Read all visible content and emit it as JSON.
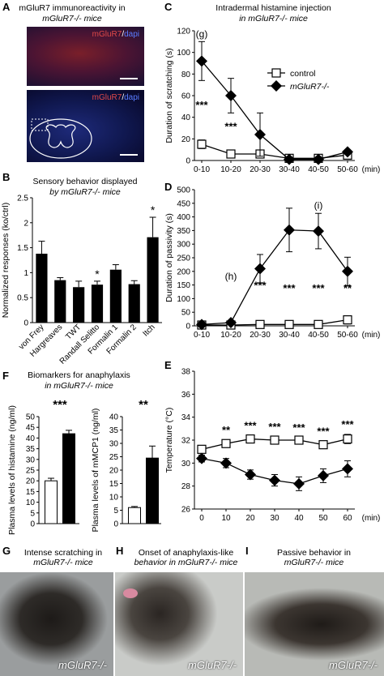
{
  "panels": {
    "A": {
      "letter": "A",
      "title_line1": "mGluR7 immunoreactivity in",
      "title_line2": "mGluR7-/- mice",
      "image_label_top": {
        "marker": "mGluR7",
        "sep": "/",
        "stain": "dapi"
      },
      "image_label_bottom": {
        "marker": "mGluR7",
        "sep": "/",
        "stain": "dapi"
      }
    },
    "B": {
      "letter": "B",
      "title_line1": "Sensory behavior displayed",
      "title_line2": "by mGluR7-/- mice"
    },
    "C": {
      "letter": "C",
      "title_line1": "Intradermal histamine injection",
      "title_line2": "in mGluR7-/- mice"
    },
    "D": {
      "letter": "D"
    },
    "E": {
      "letter": "E"
    },
    "F": {
      "letter": "F",
      "title_line1": "Biomarkers for anaphylaxis",
      "title_line2": "in mGluR7-/- mice"
    },
    "G": {
      "letter": "G",
      "caption_line1": "Intense scratching in",
      "caption_line2": "mGluR7-/- mice",
      "genotype": "mGluR7-/-"
    },
    "H": {
      "letter": "H",
      "caption_line1": "Onset of anaphylaxis-like",
      "caption_line2": "behavior in mGluR7-/- mice",
      "genotype": "mGluR7-/-"
    },
    "I": {
      "letter": "I",
      "caption_line1": "Passive behavior in",
      "caption_line2": "mGluR7-/- mice",
      "genotype": "mGluR7-/-"
    }
  },
  "colors": {
    "red_stain": "#d23a3a",
    "blue_stain": "#4b6cff",
    "bar": "#000000"
  },
  "chart_data": [
    {
      "id": "B",
      "type": "bar",
      "ylabel": "Normalized responses (ko/ctrl)",
      "ylim": [
        0,
        2.5
      ],
      "yticks": [
        0,
        0.5,
        1,
        1.5,
        2,
        2.5
      ],
      "ytick_labels": [
        "0",
        "0.5",
        "1",
        "1.5",
        "2",
        "2.5"
      ],
      "categories": [
        "von Frey",
        "Hargreaves",
        "TWT",
        "Randall Selitto",
        "Formalin 1",
        "Formalin 2",
        "Itch"
      ],
      "values": [
        1.38,
        0.85,
        0.71,
        0.76,
        1.06,
        0.77,
        1.71
      ],
      "errors": [
        0.25,
        0.05,
        0.12,
        0.07,
        0.1,
        0.07,
        0.4
      ],
      "annotations": [
        {
          "category": "Randall Selitto",
          "text": "*"
        },
        {
          "category": "Itch",
          "text": "*"
        }
      ]
    },
    {
      "id": "C",
      "type": "line",
      "ylabel": "Duration of scratching (s)",
      "ylim": [
        0,
        120
      ],
      "yticks": [
        0,
        20,
        40,
        60,
        80,
        100,
        120
      ],
      "categories": [
        "0-10",
        "10-20",
        "20-30",
        "30-40",
        "40-50",
        "50-60"
      ],
      "x_unit": "(min)",
      "series": [
        {
          "name": "control",
          "marker": "square",
          "values": [
            15,
            6,
            6,
            2,
            2,
            5
          ],
          "errors": [
            4,
            2,
            2,
            1,
            1,
            2
          ]
        },
        {
          "name": "mGluR7-/-",
          "marker": "diamond",
          "values": [
            92,
            60,
            24,
            1,
            1,
            8
          ],
          "errors": [
            18,
            16,
            20,
            1,
            1,
            2
          ]
        }
      ],
      "legend_position": "top-right",
      "annotations": [
        {
          "x": "0-10",
          "text": "***",
          "y": 48
        },
        {
          "x": "10-20",
          "text": "***",
          "y": 28
        },
        {
          "x": "0-10",
          "text": "(g)",
          "y": 114
        }
      ]
    },
    {
      "id": "D",
      "type": "line",
      "ylabel": "Duration of passivity (s)",
      "ylim": [
        0,
        500
      ],
      "yticks": [
        0,
        50,
        100,
        150,
        200,
        250,
        300,
        350,
        400,
        450,
        500
      ],
      "categories": [
        "0-10",
        "10-20",
        "20-30",
        "30-40",
        "40-50",
        "50-60"
      ],
      "x_unit": "(min)",
      "series": [
        {
          "name": "control",
          "marker": "square",
          "values": [
            3,
            3,
            5,
            5,
            5,
            22
          ],
          "errors": [
            2,
            2,
            3,
            3,
            3,
            15
          ]
        },
        {
          "name": "mGluR7-/-",
          "marker": "diamond",
          "values": [
            5,
            12,
            210,
            352,
            348,
            200
          ],
          "errors": [
            3,
            5,
            52,
            80,
            65,
            52
          ]
        }
      ],
      "annotations": [
        {
          "x": "20-30",
          "text": "***",
          "y": 135
        },
        {
          "x": "30-40",
          "text": "***",
          "y": 125
        },
        {
          "x": "40-50",
          "text": "***",
          "y": 125
        },
        {
          "x": "50-60",
          "text": "**",
          "y": 125
        },
        {
          "x": "10-20",
          "text": "(h)",
          "y": 170
        },
        {
          "x": "40-50",
          "text": "(i)",
          "y": 430
        }
      ]
    },
    {
      "id": "E",
      "type": "line",
      "ylabel": "Temperature (°C)",
      "ylim": [
        26,
        38
      ],
      "yticks": [
        26,
        28,
        30,
        32,
        34,
        36,
        38
      ],
      "x": [
        0,
        10,
        20,
        30,
        40,
        50,
        60
      ],
      "x_unit": "(min)",
      "series": [
        {
          "name": "control",
          "marker": "square",
          "values": [
            31.2,
            31.7,
            32.1,
            32.0,
            32.0,
            31.6,
            32.1
          ],
          "errors": [
            0.3,
            0.3,
            0.3,
            0.3,
            0.2,
            0.3,
            0.4
          ]
        },
        {
          "name": "mGluR7-/-",
          "marker": "diamond",
          "values": [
            30.4,
            30.0,
            29.0,
            28.5,
            28.2,
            28.9,
            29.5
          ],
          "errors": [
            0.3,
            0.4,
            0.4,
            0.5,
            0.6,
            0.6,
            0.7
          ]
        }
      ],
      "annotations": [
        {
          "x": 10,
          "text": "**"
        },
        {
          "x": 20,
          "text": "***"
        },
        {
          "x": 30,
          "text": "***"
        },
        {
          "x": 40,
          "text": "***"
        },
        {
          "x": 50,
          "text": "***"
        },
        {
          "x": 60,
          "text": "***"
        }
      ]
    },
    {
      "id": "F1",
      "type": "bar",
      "ylabel": "Plasma levels of histamine (ng/ml)",
      "ylim": [
        0,
        50
      ],
      "yticks": [
        0,
        5,
        10,
        15,
        20,
        25,
        30,
        35,
        40,
        45,
        50
      ],
      "series": [
        {
          "name": "control",
          "fill": "white",
          "value": 20,
          "error": 1.2
        },
        {
          "name": "mGluR7-/-",
          "fill": "black",
          "value": 42,
          "error": 1.6
        }
      ],
      "annotations": [
        {
          "text": "***"
        }
      ]
    },
    {
      "id": "F2",
      "type": "bar",
      "ylabel": "Plasma levels of mMCP1 (ng/ml)",
      "ylim": [
        0,
        40
      ],
      "yticks": [
        0,
        5,
        10,
        15,
        20,
        25,
        30,
        35,
        40
      ],
      "series": [
        {
          "name": "control",
          "fill": "white",
          "value": 6,
          "error": 0.4
        },
        {
          "name": "mGluR7-/-",
          "fill": "black",
          "value": 24.5,
          "error": 4.5
        }
      ],
      "annotations": [
        {
          "text": "**"
        }
      ]
    }
  ]
}
